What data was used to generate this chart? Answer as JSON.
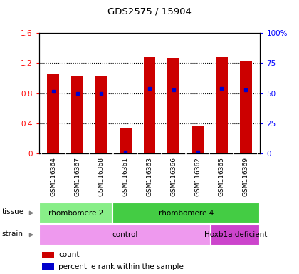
{
  "title": "GDS2575 / 15904",
  "samples": [
    "GSM116364",
    "GSM116367",
    "GSM116368",
    "GSM116361",
    "GSM116363",
    "GSM116366",
    "GSM116362",
    "GSM116365",
    "GSM116369"
  ],
  "counts": [
    1.05,
    1.02,
    1.03,
    0.33,
    1.28,
    1.27,
    0.37,
    1.28,
    1.23
  ],
  "percentile_ranks_left": [
    0.82,
    0.8,
    0.8,
    0.02,
    0.86,
    0.84,
    0.02,
    0.86,
    0.84
  ],
  "bar_color": "#cc0000",
  "dot_color": "#0000cc",
  "ylim_left": [
    0,
    1.6
  ],
  "ylim_right": [
    0,
    100
  ],
  "yticks_left": [
    0,
    0.4,
    0.8,
    1.2,
    1.6
  ],
  "yticks_right": [
    0,
    25,
    50,
    75,
    100
  ],
  "ytick_labels_right": [
    "0",
    "25",
    "50",
    "75",
    "100%"
  ],
  "tissue_groups": [
    {
      "label": "rhombomere 2",
      "start": 0,
      "end": 3,
      "color": "#88ee88"
    },
    {
      "label": "rhombomere 4",
      "start": 3,
      "end": 9,
      "color": "#44cc44"
    }
  ],
  "strain_groups": [
    {
      "label": "control",
      "start": 0,
      "end": 7,
      "color": "#ee99ee"
    },
    {
      "label": "Hoxb1a deficient",
      "start": 7,
      "end": 9,
      "color": "#cc44cc"
    }
  ],
  "legend": [
    {
      "label": "count",
      "color": "#cc0000"
    },
    {
      "label": "percentile rank within the sample",
      "color": "#0000cc"
    }
  ],
  "bg_color": "#cccccc",
  "bar_width": 0.5
}
